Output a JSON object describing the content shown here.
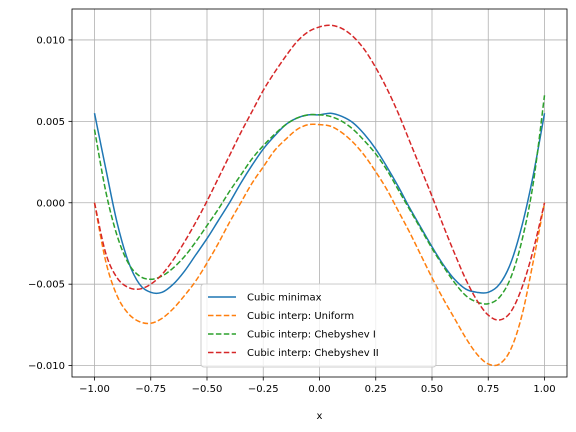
{
  "chart_data": {
    "type": "line",
    "title": "",
    "xlabel": "x",
    "ylabel": "",
    "xlim": [
      -1.1,
      1.1
    ],
    "ylim": [
      -0.0107,
      0.0119
    ],
    "grid": true,
    "legend_position": "lower center",
    "x_ticks": [
      -1.0,
      -0.75,
      -0.5,
      -0.25,
      0.0,
      0.25,
      0.5,
      0.75,
      1.0
    ],
    "x_tick_labels": [
      "−1.00",
      "−0.75",
      "−0.50",
      "−0.25",
      "0.00",
      "0.25",
      "0.50",
      "0.75",
      "1.00"
    ],
    "y_ticks": [
      -0.01,
      -0.005,
      0.0,
      0.005,
      0.01
    ],
    "y_tick_labels": [
      "−0.010",
      "−0.005",
      "0.000",
      "0.005",
      "0.010"
    ],
    "x": [
      -1.0,
      -0.95,
      -0.9,
      -0.85,
      -0.8,
      -0.75,
      -0.7,
      -0.65,
      -0.6,
      -0.55,
      -0.5,
      -0.45,
      -0.4,
      -0.35,
      -0.3,
      -0.25,
      -0.2,
      -0.15,
      -0.1,
      -0.05,
      0.0,
      0.05,
      0.1,
      0.15,
      0.2,
      0.25,
      0.3,
      0.35,
      0.4,
      0.45,
      0.5,
      0.55,
      0.6,
      0.65,
      0.7,
      0.75,
      0.8,
      0.85,
      0.9,
      0.95,
      1.0
    ],
    "series": [
      {
        "name": "Cubic minimax",
        "color": "#1f77b4",
        "dash": "solid",
        "values": [
          0.0055,
          0.0021,
          -0.0012,
          -0.0036,
          -0.005,
          -0.0055,
          -0.0055,
          -0.005,
          -0.0042,
          -0.0032,
          -0.0022,
          -0.0011,
          0.0,
          0.0012,
          0.0023,
          0.0033,
          0.0041,
          0.0048,
          0.0052,
          0.0054,
          0.0054,
          0.0055,
          0.0053,
          0.0049,
          0.0042,
          0.0033,
          0.0022,
          0.001,
          -0.0003,
          -0.0015,
          -0.0027,
          -0.0038,
          -0.0047,
          -0.0053,
          -0.0055,
          -0.0055,
          -0.005,
          -0.0037,
          -0.0014,
          0.0017,
          0.0055
        ]
      },
      {
        "name": "Cubic interp: Uniform",
        "color": "#ff7f0e",
        "dash": "dashed",
        "values": [
          0.0,
          -0.0036,
          -0.0057,
          -0.0068,
          -0.0073,
          -0.0074,
          -0.0071,
          -0.0065,
          -0.0057,
          -0.0048,
          -0.0037,
          -0.0025,
          -0.0012,
          0.0,
          0.0012,
          0.0022,
          0.0032,
          0.0039,
          0.0045,
          0.0048,
          0.0048,
          0.0047,
          0.0043,
          0.0037,
          0.0029,
          0.0019,
          0.0008,
          -0.0005,
          -0.0018,
          -0.0032,
          -0.0046,
          -0.0059,
          -0.0071,
          -0.0083,
          -0.0093,
          -0.0099,
          -0.0099,
          -0.009,
          -0.0069,
          -0.0036,
          0.0
        ]
      },
      {
        "name": "Cubic interp: Chebyshev I",
        "color": "#2ca02c",
        "dash": "dashed",
        "values": [
          0.0045,
          0.0007,
          -0.002,
          -0.0037,
          -0.0045,
          -0.0047,
          -0.0045,
          -0.004,
          -0.0033,
          -0.0024,
          -0.0014,
          -0.0004,
          0.0007,
          0.0017,
          0.0027,
          0.0035,
          0.0042,
          0.0048,
          0.0052,
          0.0054,
          0.0054,
          0.0053,
          0.005,
          0.0045,
          0.0038,
          0.003,
          0.002,
          0.0008,
          -0.0004,
          -0.0016,
          -0.0028,
          -0.0039,
          -0.0049,
          -0.0057,
          -0.0061,
          -0.0062,
          -0.0058,
          -0.0046,
          -0.0023,
          0.0012,
          0.0066
        ]
      },
      {
        "name": "Cubic interp: Chebyshev II",
        "color": "#d62728",
        "dash": "dashed",
        "values": [
          0.0,
          -0.0031,
          -0.0046,
          -0.0052,
          -0.0053,
          -0.005,
          -0.0044,
          -0.0035,
          -0.0024,
          -0.0012,
          0.0001,
          0.0015,
          0.0029,
          0.0043,
          0.0056,
          0.0069,
          0.008,
          0.009,
          0.0099,
          0.0105,
          0.0108,
          0.0109,
          0.0107,
          0.0102,
          0.0094,
          0.0083,
          0.007,
          0.0055,
          0.0038,
          0.0021,
          0.0004,
          -0.0014,
          -0.0031,
          -0.0047,
          -0.006,
          -0.0069,
          -0.0072,
          -0.0067,
          -0.0052,
          -0.0029,
          0.0
        ]
      }
    ]
  }
}
